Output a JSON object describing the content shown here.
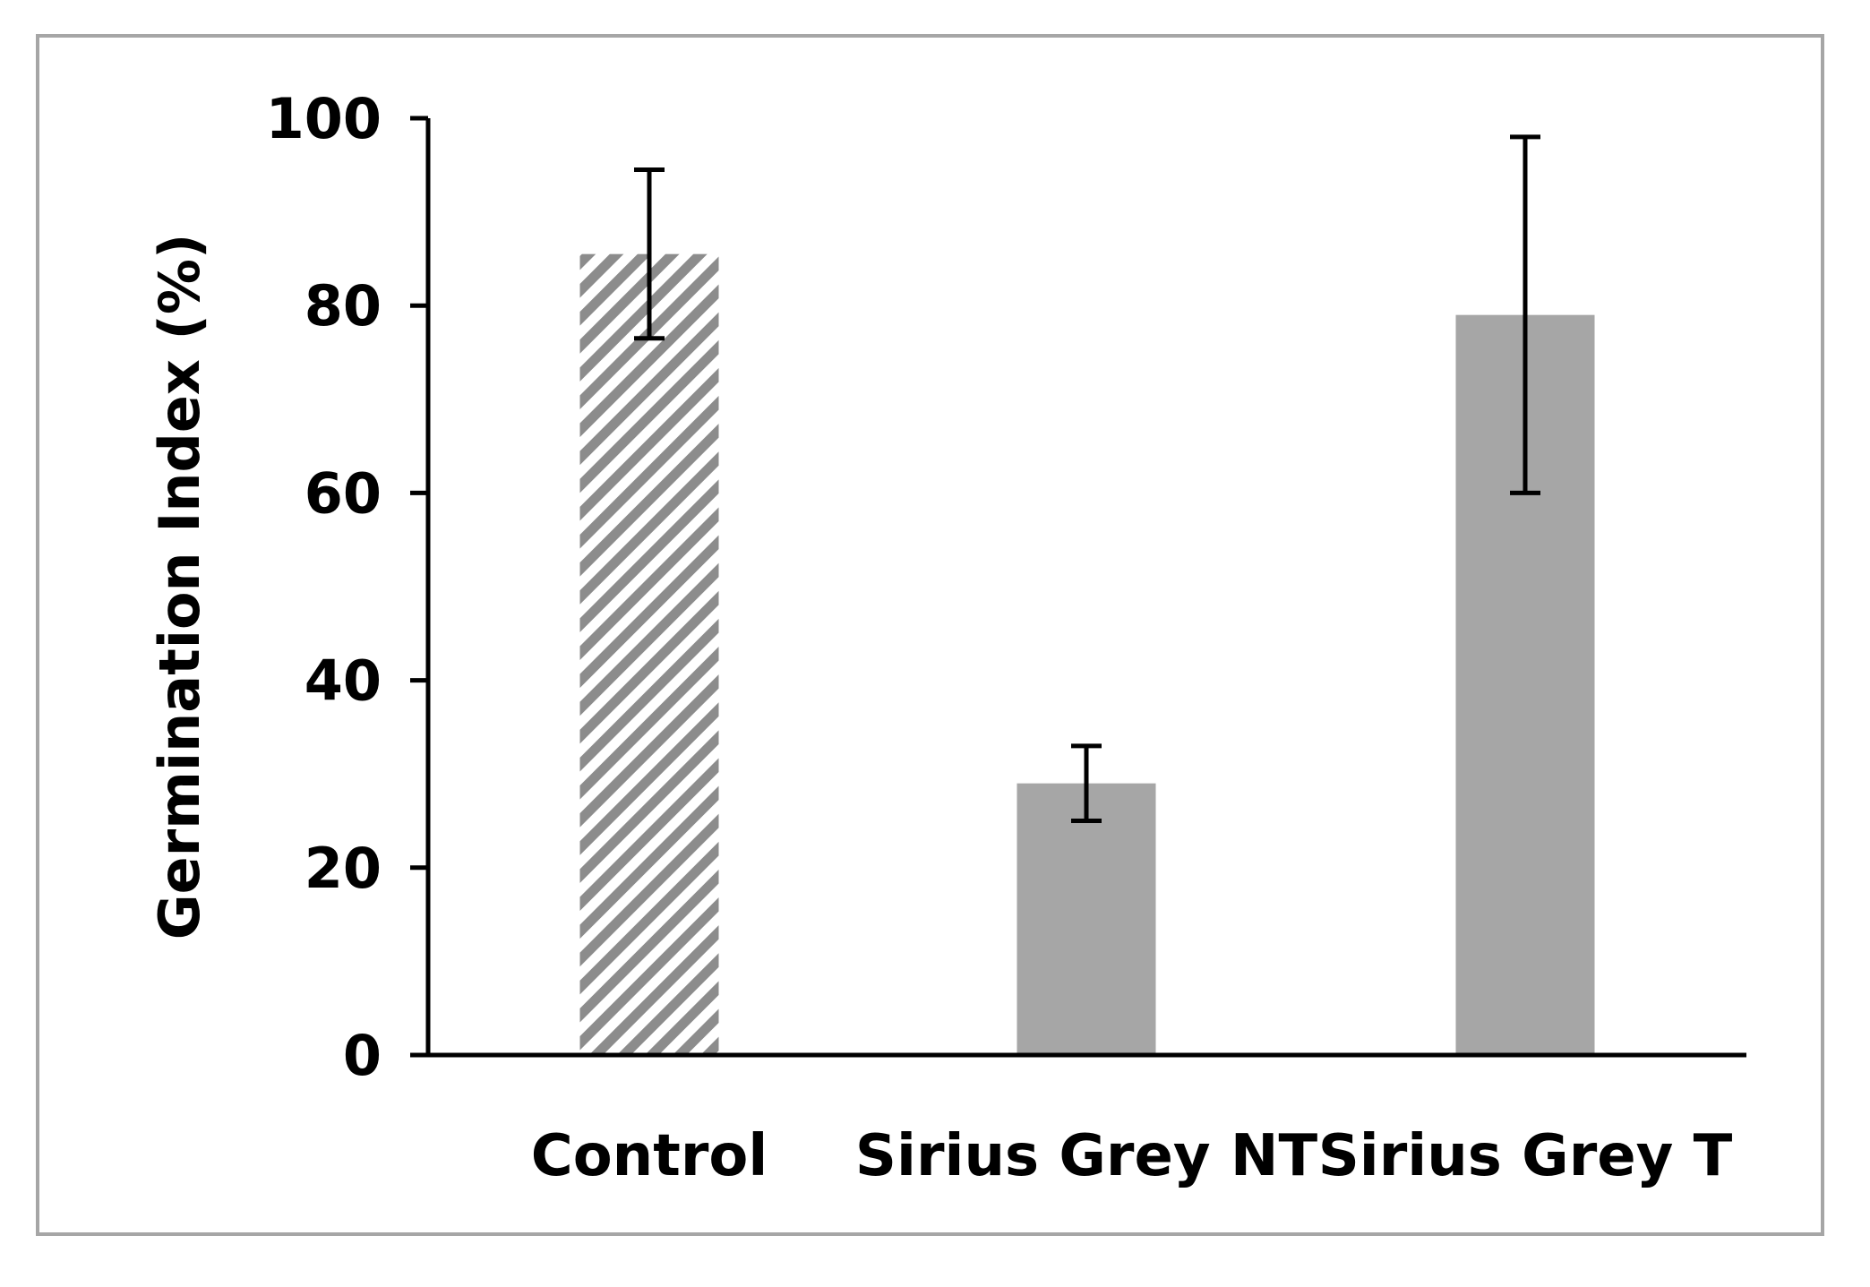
{
  "chart_data": {
    "type": "bar",
    "categories": [
      "Control",
      "Sirius Grey NT",
      "Sirius Grey T"
    ],
    "values": [
      85.5,
      29,
      79
    ],
    "error": [
      9,
      4,
      19
    ],
    "patterns": [
      "hatched",
      "solid",
      "solid"
    ],
    "colors": {
      "bar": "#a6a6a6",
      "hatch": "#8c8c8c",
      "axis": "#000000"
    },
    "title": "",
    "xlabel": "",
    "ylabel": "Germination Index (%)",
    "ylim": [
      0,
      100
    ],
    "yticks": [
      "0",
      "20",
      "40",
      "60",
      "80",
      "100"
    ],
    "grid": false,
    "legend": "none"
  }
}
